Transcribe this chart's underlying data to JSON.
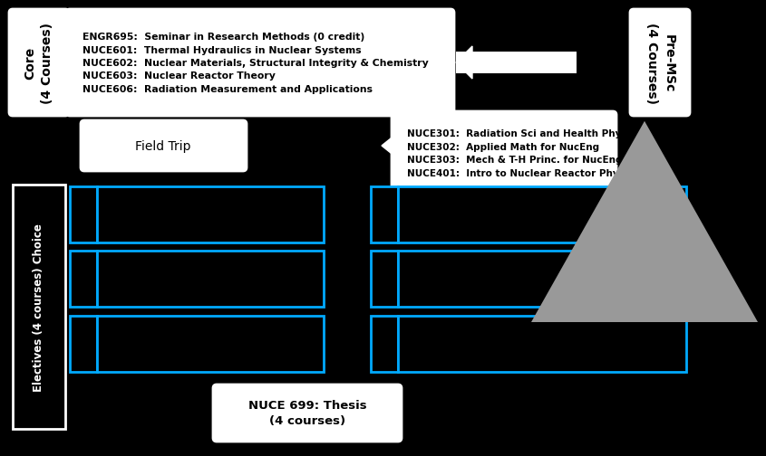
{
  "bg": "#000000",
  "white": "#ffffff",
  "blue": "#00aaff",
  "gray": "#999999",
  "core_label": "Core\n(4 Courses)",
  "premsc_label": "Pre-MSc\n(4 Courses)",
  "core_lines": [
    "ENGR695:  Seminar in Research Methods (0 credit)",
    "NUCE601:  Thermal Hydraulics in Nuclear Systems",
    "NUCE602:  Nuclear Materials, Structural Integrity & Chemistry",
    "NUCE603:  Nuclear Reactor Theory",
    "NUCE606:  Radiation Measurement and Applications"
  ],
  "premsc_lines": [
    "NUCE301:  Radiation Sci and Health Phys",
    "NUCE302:  Applied Math for NucEng",
    "NUCE303:  Mech & T-H Princ. for NucEng",
    "NUCE401:  Intro to Nuclear Reactor Physics"
  ],
  "field_trip_label": "Field Trip",
  "electives_label": "Electives (4 courses) Choice",
  "thesis_label": "NUCE 699: Thesis\n(4 courses)"
}
